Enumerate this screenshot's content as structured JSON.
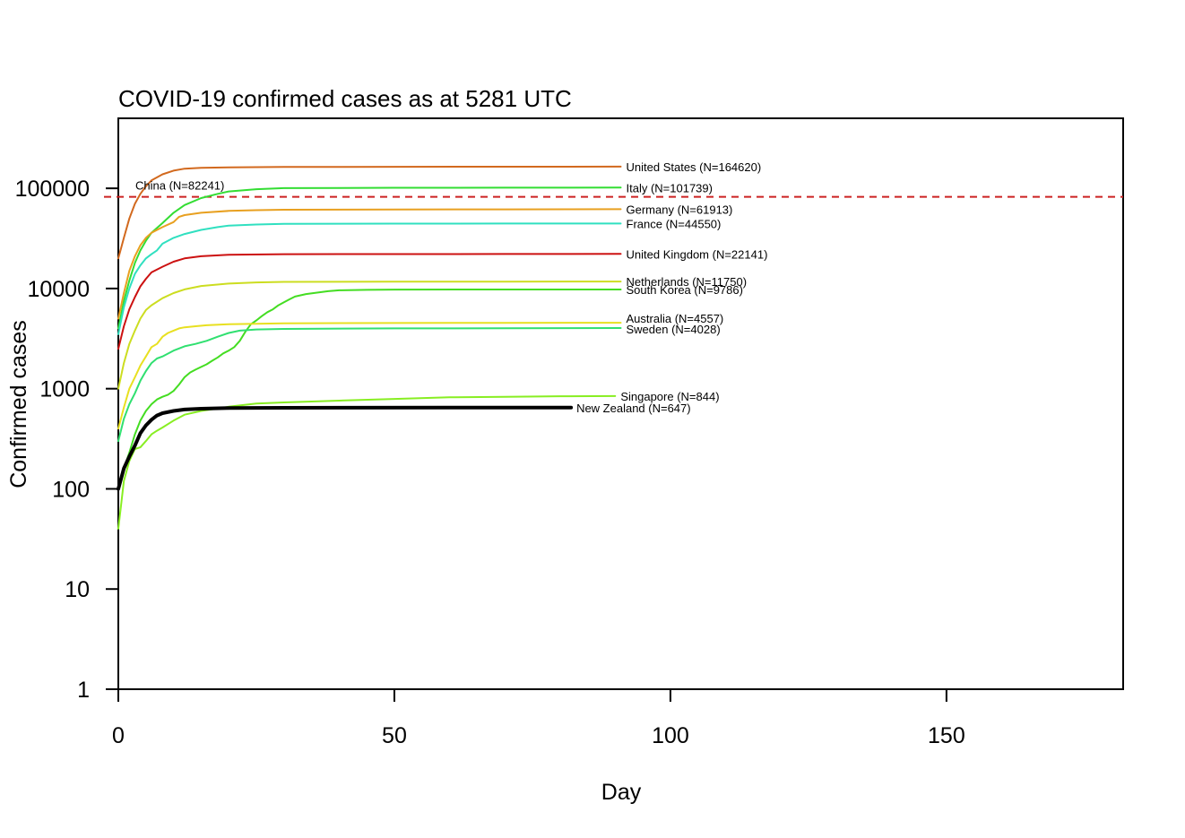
{
  "chart_data": {
    "type": "line",
    "title": "COVID-19 confirmed cases as at 5281 UTC",
    "xlabel": "Day",
    "ylabel": "Confirmed cases",
    "xlim": [
      0,
      182
    ],
    "ylim": [
      1,
      500000
    ],
    "y_scale": "log",
    "x_ticks": [
      0,
      50,
      100,
      150
    ],
    "x_tick_labels": [
      "0",
      "50",
      "100",
      "150"
    ],
    "y_ticks": [
      1,
      10,
      100,
      1000,
      10000,
      100000
    ],
    "y_tick_labels": [
      "1",
      "10",
      "100",
      "1000",
      "10000",
      "100000"
    ],
    "grid": false,
    "reference_line": {
      "value": 82241,
      "color": "#cc2222",
      "style": "dashed"
    },
    "series": [
      {
        "name": "United States",
        "label": "United States (N=164620)",
        "color": "#d2691e",
        "width": 2,
        "x": [
          0,
          1,
          2,
          3,
          4,
          5,
          6,
          8,
          10,
          12,
          15,
          20,
          30,
          50,
          70,
          91
        ],
        "y": [
          20000,
          32000,
          50000,
          70000,
          88000,
          105000,
          120000,
          138000,
          150000,
          157000,
          160000,
          162000,
          163500,
          164000,
          164300,
          164620
        ]
      },
      {
        "name": "China",
        "label": "China (N=82241)",
        "color": "#cc2222",
        "dashed": true,
        "x": [],
        "y": []
      },
      {
        "name": "Italy",
        "label": "Italy (N=101739)",
        "color": "#33dd33",
        "width": 2,
        "x": [
          0,
          1,
          2,
          3,
          4,
          5,
          6,
          8,
          10,
          12,
          15,
          18,
          20,
          25,
          30,
          50,
          70,
          91
        ],
        "y": [
          4000,
          7500,
          12000,
          18000,
          24000,
          30000,
          36000,
          45000,
          57000,
          68000,
          80000,
          88000,
          93000,
          98000,
          100500,
          101200,
          101500,
          101739
        ]
      },
      {
        "name": "Germany",
        "label": "Germany (N=61913)",
        "color": "#e8a020",
        "width": 2,
        "x": [
          0,
          1,
          2,
          3,
          4,
          5,
          6,
          8,
          10,
          11,
          12,
          15,
          20,
          25,
          30,
          50,
          70,
          91
        ],
        "y": [
          5000,
          9000,
          15000,
          21000,
          27000,
          32000,
          36000,
          41000,
          46000,
          52000,
          54000,
          57000,
          59500,
          60500,
          61200,
          61500,
          61700,
          61913
        ]
      },
      {
        "name": "France",
        "label": "France (N=44550)",
        "color": "#30e0c0",
        "width": 2,
        "x": [
          0,
          1,
          2,
          3,
          4,
          5,
          6,
          7,
          8,
          10,
          12,
          15,
          18,
          20,
          25,
          30,
          50,
          70,
          91
        ],
        "y": [
          3500,
          6500,
          10000,
          14000,
          17000,
          20000,
          22000,
          24000,
          28000,
          32000,
          35000,
          38500,
          41000,
          42500,
          43500,
          44200,
          44400,
          44500,
          44550
        ]
      },
      {
        "name": "United Kingdom",
        "label": "United Kingdom (N=22141)",
        "color": "#cc1111",
        "width": 2,
        "x": [
          0,
          1,
          2,
          3,
          4,
          5,
          6,
          8,
          10,
          12,
          15,
          20,
          30,
          50,
          70,
          91
        ],
        "y": [
          2500,
          4200,
          6200,
          8200,
          10500,
          12500,
          14500,
          16500,
          18500,
          20000,
          21000,
          21700,
          22000,
          22050,
          22100,
          22141
        ]
      },
      {
        "name": "Netherlands",
        "label": "Netherlands (N=11750)",
        "color": "#ccdd20",
        "width": 2,
        "x": [
          0,
          1,
          2,
          3,
          4,
          5,
          6,
          8,
          10,
          12,
          15,
          20,
          25,
          30,
          50,
          70,
          91
        ],
        "y": [
          1000,
          1800,
          2800,
          3800,
          5000,
          6100,
          6800,
          8000,
          9000,
          9800,
          10600,
          11200,
          11500,
          11650,
          11700,
          11730,
          11750
        ]
      },
      {
        "name": "South Korea",
        "label": "South Korea (N=9786)",
        "color": "#44dd22",
        "width": 2,
        "x": [
          0,
          1,
          2,
          3,
          4,
          5,
          6,
          7,
          8,
          9,
          10,
          11,
          12,
          13,
          14,
          15,
          16,
          17,
          18,
          19,
          20,
          21,
          22,
          23,
          24,
          25,
          26,
          27,
          28,
          29,
          30,
          31,
          32,
          34,
          36,
          38,
          40,
          45,
          50,
          70,
          91
        ],
        "y": [
          100,
          160,
          230,
          350,
          480,
          600,
          700,
          780,
          830,
          870,
          950,
          1100,
          1300,
          1450,
          1550,
          1650,
          1750,
          1900,
          2050,
          2250,
          2400,
          2600,
          3000,
          3700,
          4400,
          4800,
          5300,
          5800,
          6200,
          6800,
          7300,
          7800,
          8300,
          8800,
          9100,
          9400,
          9600,
          9700,
          9750,
          9770,
          9786
        ]
      },
      {
        "name": "Australia",
        "label": "Australia (N=4557)",
        "color": "#e8e020",
        "width": 2,
        "x": [
          0,
          1,
          2,
          3,
          4,
          5,
          6,
          7,
          8,
          9,
          10,
          11,
          12,
          14,
          16,
          20,
          25,
          30,
          50,
          70,
          91
        ],
        "y": [
          400,
          650,
          1000,
          1300,
          1700,
          2100,
          2600,
          2800,
          3300,
          3600,
          3800,
          4000,
          4100,
          4200,
          4300,
          4400,
          4450,
          4500,
          4520,
          4540,
          4557
        ]
      },
      {
        "name": "Sweden",
        "label": "Sweden (N=4028)",
        "color": "#30e070",
        "width": 2,
        "x": [
          0,
          1,
          2,
          3,
          4,
          5,
          6,
          7,
          8,
          10,
          12,
          14,
          16,
          18,
          20,
          22,
          25,
          30,
          50,
          70,
          91
        ],
        "y": [
          300,
          500,
          700,
          900,
          1200,
          1500,
          1800,
          2000,
          2100,
          2400,
          2650,
          2800,
          3000,
          3300,
          3600,
          3800,
          3900,
          3950,
          4000,
          4010,
          4028
        ]
      },
      {
        "name": "Singapore",
        "label": "Singapore (N=844)",
        "color": "#88ee22",
        "width": 2,
        "x": [
          0,
          1,
          2,
          3,
          4,
          5,
          6,
          7,
          8,
          10,
          12,
          15,
          20,
          25,
          30,
          40,
          50,
          60,
          70,
          80,
          90
        ],
        "y": [
          40,
          120,
          190,
          250,
          260,
          300,
          350,
          380,
          410,
          480,
          550,
          600,
          660,
          710,
          730,
          760,
          790,
          820,
          830,
          840,
          844
        ]
      },
      {
        "name": "New Zealand",
        "label": "New Zealand (N=647)",
        "color": "#000000",
        "width": 4,
        "x": [
          0,
          1,
          2,
          3,
          4,
          5,
          6,
          7,
          8,
          10,
          12,
          15,
          20,
          30,
          40,
          60,
          82
        ],
        "y": [
          100,
          160,
          210,
          270,
          360,
          430,
          490,
          540,
          570,
          600,
          620,
          632,
          640,
          645,
          646,
          647,
          647
        ]
      }
    ]
  }
}
